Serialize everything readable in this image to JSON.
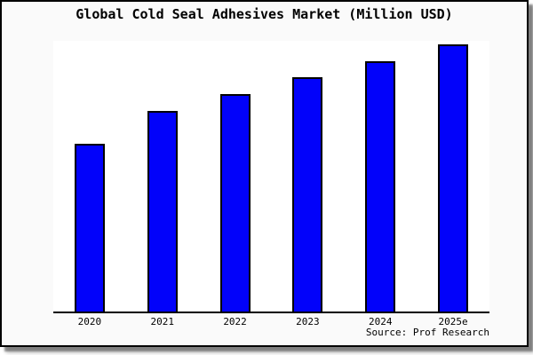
{
  "chart_data": {
    "type": "bar",
    "title": "Global Cold Seal Adhesives Market (Million USD)",
    "categories": [
      "2020",
      "2021",
      "2022",
      "2023",
      "2024",
      "2025e"
    ],
    "values": [
      189,
      226,
      245,
      264,
      282,
      301
    ],
    "values_note": "no y-axis scale shown in chart; values are relative bar heights in screen pixels",
    "xlabel": "",
    "ylabel": "",
    "ylim": [
      0,
      305
    ],
    "grid": false,
    "legend": false,
    "y_axis_ticks_visible": false,
    "colors": {
      "bar_fill": "#0202fa",
      "bar_outline": "#000000",
      "plot_bg": "#ffffff",
      "frame_bg": "#fafafa",
      "frame_border": "#000000",
      "text": "#000000"
    }
  },
  "footer": {
    "source_label": "Source: Prof Research"
  }
}
